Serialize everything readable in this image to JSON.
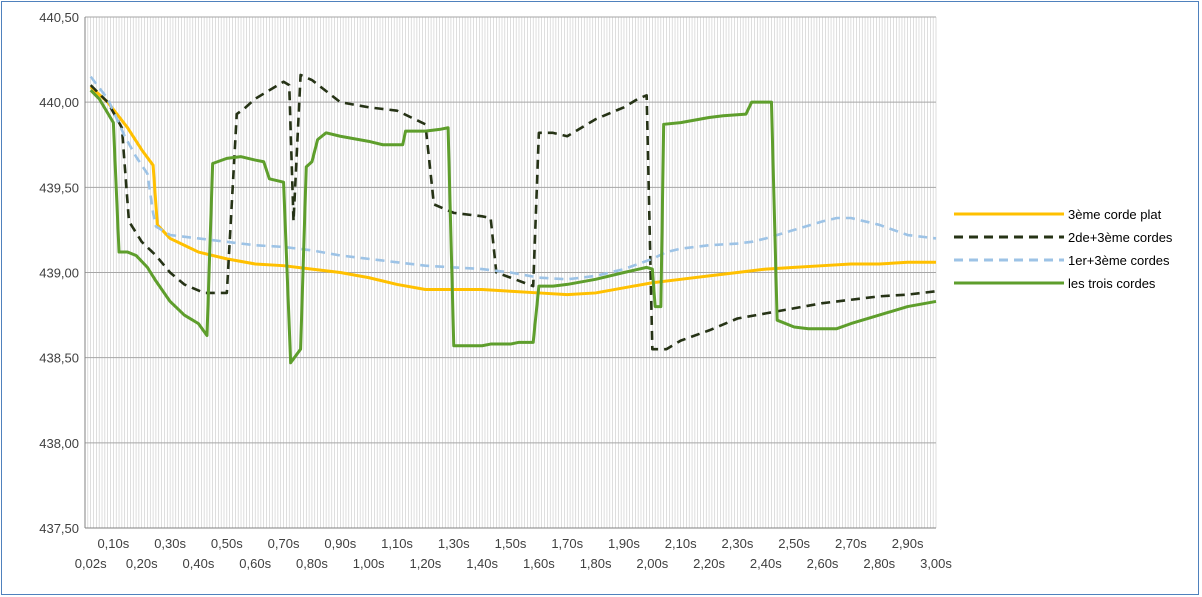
{
  "chart_data": {
    "type": "line",
    "title": "",
    "xlabel": "",
    "ylabel": "",
    "ylim": [
      437.5,
      440.5
    ],
    "xlim": [
      0.0,
      3.0
    ],
    "grid": "vertical-minor-every-0.01s",
    "legend_position": "right",
    "y_ticks": [
      "437,50",
      "438,00",
      "438,50",
      "439,00",
      "439,50",
      "440,00",
      "440,50"
    ],
    "y_tick_values": [
      437.5,
      438.0,
      438.5,
      439.0,
      439.5,
      440.0,
      440.5
    ],
    "x_ticks_upper": [
      "0,10s",
      "0,30s",
      "0,50s",
      "0,70s",
      "0,90s",
      "1,10s",
      "1,30s",
      "1,50s",
      "1,70s",
      "1,90s",
      "2,10s",
      "2,30s",
      "2,50s",
      "2,70s",
      "2,90s"
    ],
    "x_ticks_upper_values": [
      0.1,
      0.3,
      0.5,
      0.7,
      0.9,
      1.1,
      1.3,
      1.5,
      1.7,
      1.9,
      2.1,
      2.3,
      2.5,
      2.7,
      2.9
    ],
    "x_ticks_lower": [
      "0,02s",
      "0,20s",
      "0,40s",
      "0,60s",
      "0,80s",
      "1,00s",
      "1,20s",
      "1,40s",
      "1,60s",
      "1,80s",
      "2,00s",
      "2,20s",
      "2,40s",
      "2,60s",
      "2,80s",
      "3,00s"
    ],
    "x_ticks_lower_values": [
      0.02,
      0.2,
      0.4,
      0.6,
      0.8,
      1.0,
      1.2,
      1.4,
      1.6,
      1.8,
      2.0,
      2.2,
      2.4,
      2.6,
      2.8,
      3.0
    ],
    "series": [
      {
        "name": "3ème corde plat",
        "color": "#ffc000",
        "dash": "solid",
        "points": [
          [
            0.02,
            440.09
          ],
          [
            0.08,
            440.0
          ],
          [
            0.15,
            439.85
          ],
          [
            0.2,
            439.72
          ],
          [
            0.24,
            439.63
          ],
          [
            0.255,
            439.28
          ],
          [
            0.3,
            439.2
          ],
          [
            0.35,
            439.16
          ],
          [
            0.4,
            439.12
          ],
          [
            0.5,
            439.08
          ],
          [
            0.6,
            439.05
          ],
          [
            0.7,
            439.04
          ],
          [
            0.8,
            439.02
          ],
          [
            0.9,
            439.0
          ],
          [
            1.0,
            438.97
          ],
          [
            1.1,
            438.93
          ],
          [
            1.2,
            438.9
          ],
          [
            1.3,
            438.9
          ],
          [
            1.4,
            438.9
          ],
          [
            1.5,
            438.89
          ],
          [
            1.6,
            438.88
          ],
          [
            1.7,
            438.87
          ],
          [
            1.8,
            438.88
          ],
          [
            1.9,
            438.91
          ],
          [
            2.0,
            438.94
          ],
          [
            2.1,
            438.96
          ],
          [
            2.2,
            438.98
          ],
          [
            2.3,
            439.0
          ],
          [
            2.4,
            439.02
          ],
          [
            2.5,
            439.03
          ],
          [
            2.6,
            439.04
          ],
          [
            2.7,
            439.05
          ],
          [
            2.8,
            439.05
          ],
          [
            2.9,
            439.06
          ],
          [
            3.0,
            439.06
          ]
        ]
      },
      {
        "name": "2de+3ème cordes",
        "color": "#263316",
        "dash": "dashed",
        "points": [
          [
            0.02,
            440.1
          ],
          [
            0.08,
            440.0
          ],
          [
            0.13,
            439.85
          ],
          [
            0.155,
            439.3
          ],
          [
            0.2,
            439.18
          ],
          [
            0.25,
            439.1
          ],
          [
            0.3,
            439.0
          ],
          [
            0.35,
            438.93
          ],
          [
            0.42,
            438.88
          ],
          [
            0.47,
            438.88
          ],
          [
            0.5,
            438.88
          ],
          [
            0.535,
            439.93
          ],
          [
            0.56,
            439.96
          ],
          [
            0.6,
            440.02
          ],
          [
            0.65,
            440.07
          ],
          [
            0.7,
            440.12
          ],
          [
            0.72,
            440.1
          ],
          [
            0.735,
            439.3
          ],
          [
            0.76,
            440.16
          ],
          [
            0.8,
            440.13
          ],
          [
            0.9,
            440.0
          ],
          [
            1.0,
            439.97
          ],
          [
            1.1,
            439.95
          ],
          [
            1.2,
            439.87
          ],
          [
            1.23,
            439.4
          ],
          [
            1.3,
            439.35
          ],
          [
            1.4,
            439.33
          ],
          [
            1.43,
            439.32
          ],
          [
            1.45,
            439.0
          ],
          [
            1.5,
            438.97
          ],
          [
            1.58,
            438.92
          ],
          [
            1.6,
            439.82
          ],
          [
            1.65,
            439.82
          ],
          [
            1.7,
            439.8
          ],
          [
            1.8,
            439.9
          ],
          [
            1.9,
            439.97
          ],
          [
            1.95,
            440.02
          ],
          [
            1.98,
            440.04
          ],
          [
            2.0,
            438.55
          ],
          [
            2.05,
            438.55
          ],
          [
            2.1,
            438.6
          ],
          [
            2.2,
            438.66
          ],
          [
            2.3,
            438.73
          ],
          [
            2.4,
            438.76
          ],
          [
            2.5,
            438.79
          ],
          [
            2.6,
            438.82
          ],
          [
            2.7,
            438.84
          ],
          [
            2.8,
            438.86
          ],
          [
            2.9,
            438.87
          ],
          [
            3.0,
            438.89
          ]
        ]
      },
      {
        "name": "1er+3ème cordes",
        "color": "#9dc3e6",
        "dash": "dashed",
        "points": [
          [
            0.02,
            440.15
          ],
          [
            0.08,
            440.02
          ],
          [
            0.14,
            439.8
          ],
          [
            0.18,
            439.68
          ],
          [
            0.22,
            439.58
          ],
          [
            0.24,
            439.35
          ],
          [
            0.25,
            439.27
          ],
          [
            0.3,
            439.22
          ],
          [
            0.4,
            439.2
          ],
          [
            0.5,
            439.18
          ],
          [
            0.6,
            439.16
          ],
          [
            0.7,
            439.15
          ],
          [
            0.8,
            439.13
          ],
          [
            0.9,
            439.1
          ],
          [
            1.0,
            439.08
          ],
          [
            1.1,
            439.06
          ],
          [
            1.2,
            439.04
          ],
          [
            1.3,
            439.03
          ],
          [
            1.4,
            439.02
          ],
          [
            1.5,
            439.0
          ],
          [
            1.6,
            438.97
          ],
          [
            1.7,
            438.96
          ],
          [
            1.8,
            438.98
          ],
          [
            1.9,
            439.02
          ],
          [
            2.0,
            439.08
          ],
          [
            2.05,
            439.12
          ],
          [
            2.1,
            439.14
          ],
          [
            2.2,
            439.16
          ],
          [
            2.3,
            439.17
          ],
          [
            2.35,
            439.18
          ],
          [
            2.4,
            439.2
          ],
          [
            2.5,
            439.25
          ],
          [
            2.6,
            439.3
          ],
          [
            2.65,
            439.32
          ],
          [
            2.7,
            439.32
          ],
          [
            2.8,
            439.28
          ],
          [
            2.9,
            439.22
          ],
          [
            3.0,
            439.2
          ]
        ]
      },
      {
        "name": "les trois cordes",
        "color": "#5e9e2c",
        "dash": "solid",
        "points": [
          [
            0.02,
            440.07
          ],
          [
            0.05,
            440.02
          ],
          [
            0.1,
            439.88
          ],
          [
            0.12,
            439.12
          ],
          [
            0.15,
            439.12
          ],
          [
            0.18,
            439.1
          ],
          [
            0.22,
            439.03
          ],
          [
            0.25,
            438.95
          ],
          [
            0.3,
            438.83
          ],
          [
            0.35,
            438.75
          ],
          [
            0.4,
            438.7
          ],
          [
            0.43,
            438.63
          ],
          [
            0.45,
            439.64
          ],
          [
            0.5,
            439.67
          ],
          [
            0.55,
            439.68
          ],
          [
            0.6,
            439.66
          ],
          [
            0.63,
            439.65
          ],
          [
            0.65,
            439.55
          ],
          [
            0.7,
            439.53
          ],
          [
            0.725,
            438.47
          ],
          [
            0.76,
            438.55
          ],
          [
            0.78,
            439.62
          ],
          [
            0.8,
            439.65
          ],
          [
            0.82,
            439.78
          ],
          [
            0.85,
            439.82
          ],
          [
            0.9,
            439.8
          ],
          [
            1.0,
            439.77
          ],
          [
            1.05,
            439.75
          ],
          [
            1.12,
            439.75
          ],
          [
            1.13,
            439.83
          ],
          [
            1.2,
            439.83
          ],
          [
            1.25,
            439.84
          ],
          [
            1.28,
            439.85
          ],
          [
            1.3,
            438.57
          ],
          [
            1.4,
            438.57
          ],
          [
            1.43,
            438.58
          ],
          [
            1.5,
            438.58
          ],
          [
            1.53,
            438.59
          ],
          [
            1.58,
            438.59
          ],
          [
            1.6,
            438.92
          ],
          [
            1.65,
            438.92
          ],
          [
            1.7,
            438.93
          ],
          [
            1.8,
            438.96
          ],
          [
            1.9,
            439.0
          ],
          [
            1.98,
            439.03
          ],
          [
            2.0,
            439.02
          ],
          [
            2.01,
            438.8
          ],
          [
            2.03,
            438.8
          ],
          [
            2.04,
            439.87
          ],
          [
            2.1,
            439.88
          ],
          [
            2.2,
            439.91
          ],
          [
            2.25,
            439.92
          ],
          [
            2.33,
            439.93
          ],
          [
            2.35,
            440.0
          ],
          [
            2.42,
            440.0
          ],
          [
            2.44,
            438.72
          ],
          [
            2.5,
            438.68
          ],
          [
            2.55,
            438.67
          ],
          [
            2.65,
            438.67
          ],
          [
            2.7,
            438.7
          ],
          [
            2.8,
            438.75
          ],
          [
            2.9,
            438.8
          ],
          [
            3.0,
            438.83
          ]
        ]
      }
    ]
  }
}
